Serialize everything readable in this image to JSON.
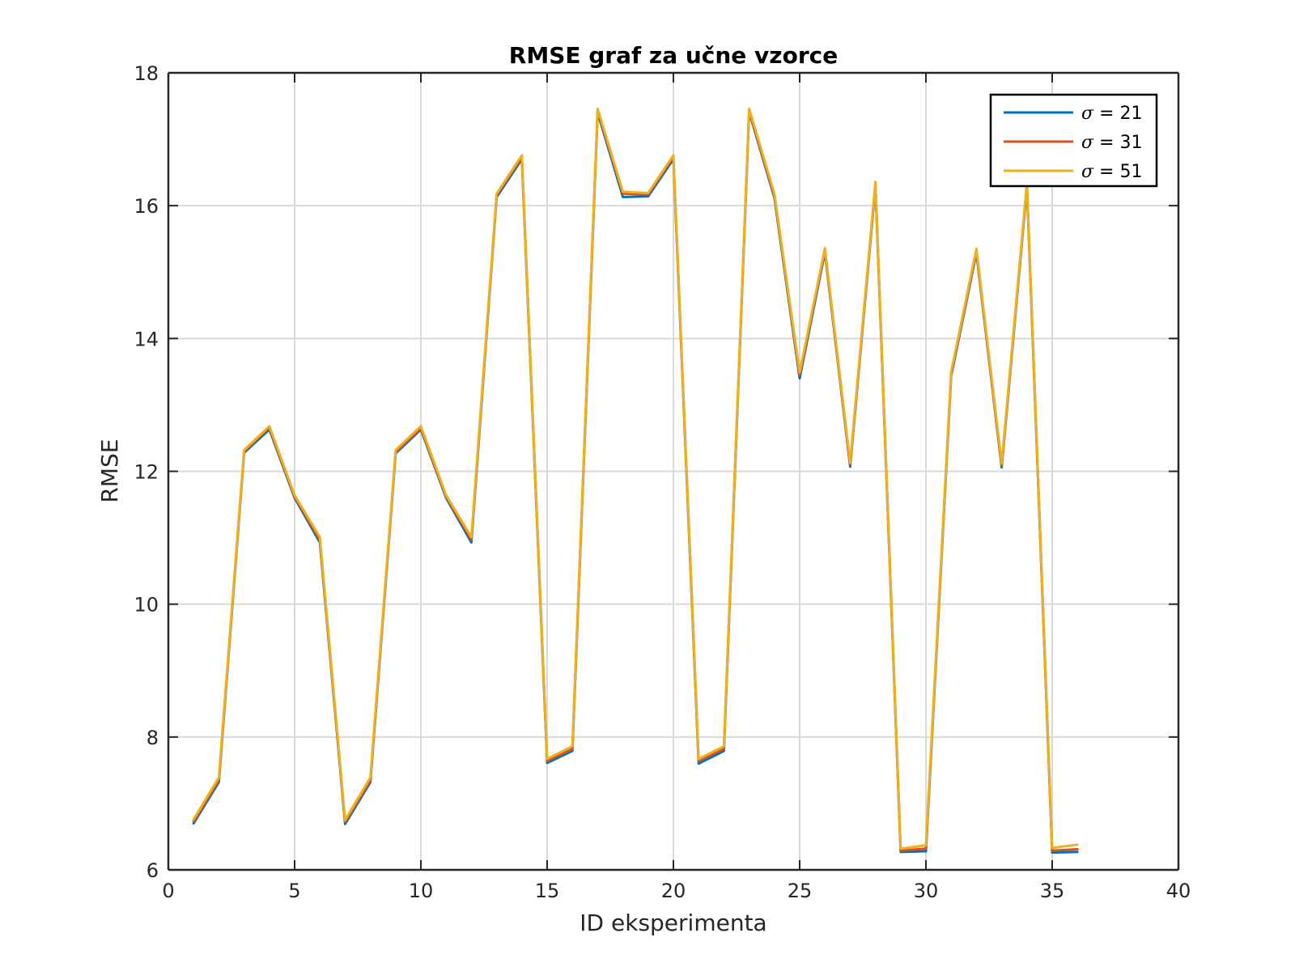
{
  "chart_data": {
    "type": "line",
    "title": "RMSE graf za učne vzorce",
    "xlabel": "ID eksperimenta",
    "ylabel": "RMSE",
    "xlim": [
      0,
      40
    ],
    "ylim": [
      6,
      18
    ],
    "xticks": [
      0,
      5,
      10,
      15,
      20,
      25,
      30,
      35,
      40
    ],
    "yticks": [
      6,
      8,
      10,
      12,
      14,
      16,
      18
    ],
    "grid": true,
    "legend_position": "top-right",
    "x": [
      1,
      2,
      3,
      4,
      5,
      6,
      7,
      8,
      9,
      10,
      11,
      12,
      13,
      14,
      15,
      16,
      17,
      18,
      19,
      20,
      21,
      22,
      23,
      24,
      25,
      26,
      27,
      28,
      29,
      30,
      31,
      32,
      33,
      34,
      35,
      36
    ],
    "series": [
      {
        "name": "σ = 21",
        "legend_symbol": "σ",
        "legend_value": "= 21",
        "color": "#0072BD",
        "values": [
          6.7,
          7.32,
          12.28,
          12.63,
          11.6,
          10.93,
          6.69,
          7.32,
          12.27,
          12.63,
          11.6,
          10.93,
          16.13,
          16.7,
          7.61,
          7.79,
          17.4,
          16.13,
          16.14,
          16.7,
          7.6,
          7.79,
          17.41,
          16.12,
          13.4,
          15.3,
          12.07,
          16.3,
          6.27,
          6.28,
          13.44,
          15.29,
          12.06,
          16.28,
          6.26,
          6.27
        ]
      },
      {
        "name": "σ = 31",
        "legend_symbol": "σ",
        "legend_value": "= 31",
        "color": "#D95319",
        "values": [
          6.73,
          7.35,
          12.3,
          12.66,
          11.62,
          10.97,
          6.72,
          7.35,
          12.29,
          12.65,
          11.62,
          10.97,
          16.16,
          16.73,
          7.64,
          7.82,
          17.43,
          16.18,
          16.17,
          16.73,
          7.64,
          7.82,
          17.43,
          16.15,
          13.45,
          15.33,
          12.1,
          16.33,
          6.29,
          6.32,
          13.47,
          15.32,
          12.09,
          16.31,
          6.29,
          6.31
        ]
      },
      {
        "name": "σ = 51",
        "legend_symbol": "σ",
        "legend_value": "= 51",
        "color": "#EDB120",
        "values": [
          6.76,
          7.39,
          12.32,
          12.68,
          11.64,
          11.01,
          6.75,
          7.39,
          12.32,
          12.68,
          11.64,
          11.01,
          16.18,
          16.76,
          7.67,
          7.86,
          17.46,
          16.21,
          16.19,
          16.76,
          7.67,
          7.86,
          17.46,
          16.18,
          13.49,
          15.36,
          12.13,
          16.36,
          6.32,
          6.37,
          13.5,
          15.35,
          12.12,
          16.34,
          6.33,
          6.38
        ]
      }
    ]
  }
}
